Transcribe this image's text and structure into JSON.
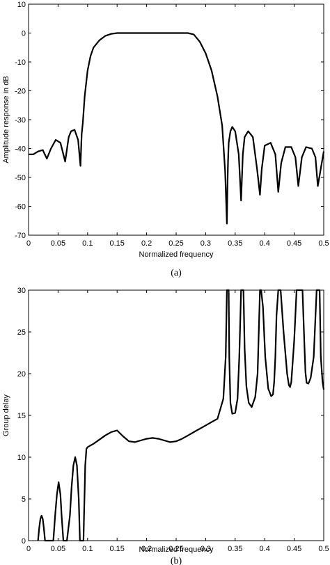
{
  "chart_data": [
    {
      "type": "line",
      "caption": "(a)",
      "xlabel": "Normalized frequency",
      "ylabel": "Amplitude response in dB",
      "xlim": [
        0,
        0.5
      ],
      "ylim": [
        -70,
        10
      ],
      "xticks": [
        0,
        0.05,
        0.1,
        0.15,
        0.2,
        0.25,
        0.3,
        0.35,
        0.4,
        0.45,
        0.5
      ],
      "xtick_labels": [
        "0",
        "0.05",
        "0.1",
        "0.15",
        "0.2",
        "0.25",
        "0.3",
        "0.35",
        "0.4",
        "0.45",
        "0.5"
      ],
      "yticks": [
        10,
        0,
        -10,
        -20,
        -30,
        -40,
        -50,
        -60,
        -70
      ],
      "ytick_labels": [
        "10",
        "0",
        "-10",
        "-20",
        "-30",
        "-40",
        "-50",
        "-60",
        "-70"
      ],
      "grid": false,
      "series": [
        {
          "x": [
            0,
            0.008,
            0.016,
            0.024,
            0.031,
            0.038,
            0.046,
            0.054,
            0.062,
            0.068,
            0.072,
            0.078,
            0.084,
            0.088,
            0.09,
            0.092,
            0.095,
            0.1,
            0.105,
            0.11,
            0.12,
            0.13,
            0.14,
            0.15,
            0.155,
            0.16,
            0.2,
            0.23,
            0.25,
            0.27,
            0.28,
            0.29,
            0.3,
            0.31,
            0.32,
            0.328,
            0.333,
            0.336,
            0.337,
            0.338,
            0.339,
            0.342,
            0.345,
            0.35,
            0.356,
            0.36,
            0.363,
            0.366,
            0.372,
            0.38,
            0.387,
            0.392,
            0.395,
            0.4,
            0.41,
            0.418,
            0.423,
            0.428,
            0.435,
            0.445,
            0.452,
            0.457,
            0.463,
            0.47,
            0.48,
            0.486,
            0.49,
            0.5
          ],
          "y": [
            -42,
            -42,
            -41,
            -40.5,
            -43.5,
            -40,
            -37,
            -38,
            -44.5,
            -36,
            -34,
            -33.5,
            -37,
            -46,
            -35,
            -31,
            -22,
            -13,
            -8,
            -5,
            -2.5,
            -1,
            -0.3,
            0,
            0,
            0,
            0,
            0,
            0,
            0,
            -0.5,
            -3,
            -7,
            -13,
            -22,
            -32,
            -48,
            -66,
            -52,
            -44,
            -38,
            -34,
            -32.5,
            -34,
            -42,
            -58,
            -42,
            -36,
            -34,
            -36,
            -47,
            -56,
            -47,
            -39,
            -38,
            -42,
            -55,
            -45,
            -39.5,
            -39.5,
            -43,
            -53,
            -43,
            -39.5,
            -40,
            -43,
            -53,
            -41
          ]
        }
      ]
    },
    {
      "type": "line",
      "caption": "(b)",
      "xlabel": "Normalized frequency",
      "ylabel": "Group delay",
      "xlim": [
        0,
        0.5
      ],
      "ylim": [
        0,
        30
      ],
      "xticks": [
        0,
        0.05,
        0.1,
        0.15,
        0.2,
        0.25,
        0.3,
        0.35,
        0.4,
        0.45,
        0.5
      ],
      "xtick_labels": [
        "0",
        "0.05",
        "0.1",
        "0.15",
        "0.2",
        "0.25",
        "0.3",
        "0.35",
        "0.4",
        "0.45",
        "0.5"
      ],
      "yticks": [
        30,
        25,
        20,
        15,
        10,
        5,
        0
      ],
      "ytick_labels": [
        "30",
        "25",
        "20",
        "15",
        "10",
        "5",
        "0"
      ],
      "grid": false,
      "series": [
        {
          "x": [
            0.016,
            0.018,
            0.02,
            0.022,
            0.024,
            0.026,
            0.028,
            0.03,
            0.032,
            0.042,
            0.045,
            0.048,
            0.051,
            0.054,
            0.056,
            0.059,
            0.062,
            0.065,
            0.07,
            0.073,
            0.076,
            0.079,
            0.082,
            0.085,
            0.087,
            0.09,
            0.093,
            0.094,
            0.095,
            0.096,
            0.097,
            0.098,
            0.1,
            0.11,
            0.12,
            0.13,
            0.14,
            0.15,
            0.16,
            0.17,
            0.18,
            0.19,
            0.2,
            0.21,
            0.22,
            0.23,
            0.24,
            0.25,
            0.26,
            0.27,
            0.28,
            0.29,
            0.3,
            0.31,
            0.32,
            0.33,
            0.334,
            0.336,
            0.338,
            0.339,
            0.34,
            0.342,
            0.345,
            0.35,
            0.354,
            0.357,
            0.36,
            0.362,
            0.364,
            0.366,
            0.369,
            0.373,
            0.378,
            0.384,
            0.388,
            0.39,
            0.392,
            0.394,
            0.397,
            0.401,
            0.406,
            0.411,
            0.414,
            0.416,
            0.418,
            0.42,
            0.423,
            0.427,
            0.432,
            0.438,
            0.441,
            0.443,
            0.445,
            0.447,
            0.45,
            0.454,
            0.459,
            0.464,
            0.467,
            0.469,
            0.471,
            0.474,
            0.478,
            0.483,
            0.488,
            0.491,
            0.493,
            0.495,
            0.498,
            0.5
          ],
          "y": [
            0,
            1.5,
            2.6,
            3,
            2.6,
            1.5,
            0,
            0,
            0,
            0,
            3,
            5.5,
            7,
            5.5,
            3,
            0,
            0,
            0,
            3,
            6.5,
            9,
            10,
            9,
            5,
            0,
            0,
            0,
            3,
            6,
            9,
            10,
            11,
            11.2,
            11.6,
            12.1,
            12.6,
            13,
            13.2,
            12.5,
            11.9,
            11.8,
            12,
            12.2,
            12.3,
            12.2,
            12,
            11.8,
            11.9,
            12.2,
            12.6,
            13,
            13.4,
            13.8,
            14.2,
            14.6,
            17,
            22,
            30,
            30,
            30,
            22,
            16.5,
            15.2,
            15.3,
            17,
            22,
            30,
            30,
            30,
            23,
            18.5,
            16.5,
            16,
            17.2,
            20,
            25,
            30,
            30,
            28,
            22,
            18.2,
            17.3,
            17.5,
            19,
            22,
            27,
            30,
            30,
            25,
            20,
            18.6,
            18.4,
            19,
            21,
            24,
            30,
            30,
            30,
            24,
            20.2,
            18.9,
            18.8,
            19.5,
            22,
            30,
            30,
            30,
            22,
            19,
            18.1
          ]
        }
      ]
    }
  ]
}
